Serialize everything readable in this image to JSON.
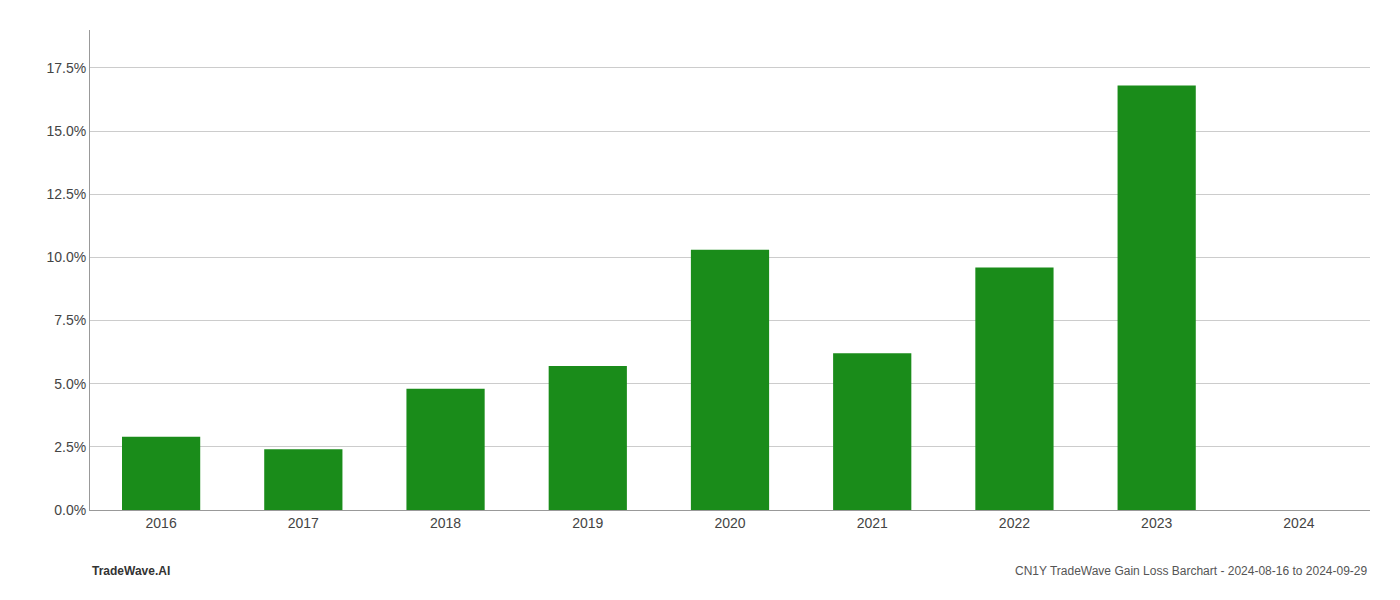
{
  "chart_data": {
    "type": "bar",
    "categories": [
      "2016",
      "2017",
      "2018",
      "2019",
      "2020",
      "2021",
      "2022",
      "2023",
      "2024"
    ],
    "values": [
      0.029,
      0.024,
      0.048,
      0.057,
      0.103,
      0.062,
      0.096,
      0.168,
      0.0
    ],
    "color": "#1a8c1a",
    "ylim": [
      0,
      0.19
    ],
    "yticks": [
      {
        "value": 0.0,
        "label": "0.0%"
      },
      {
        "value": 0.025,
        "label": "2.5%"
      },
      {
        "value": 0.05,
        "label": "5.0%"
      },
      {
        "value": 0.075,
        "label": "7.5%"
      },
      {
        "value": 0.1,
        "label": "10.0%"
      },
      {
        "value": 0.125,
        "label": "12.5%"
      },
      {
        "value": 0.15,
        "label": "15.0%"
      },
      {
        "value": 0.175,
        "label": "17.5%"
      }
    ],
    "grid": true,
    "annotations": [
      "TradeWave.AI",
      "CN1Y TradeWave Gain Loss Barchart - 2024-08-16 to 2024-09-29"
    ]
  }
}
